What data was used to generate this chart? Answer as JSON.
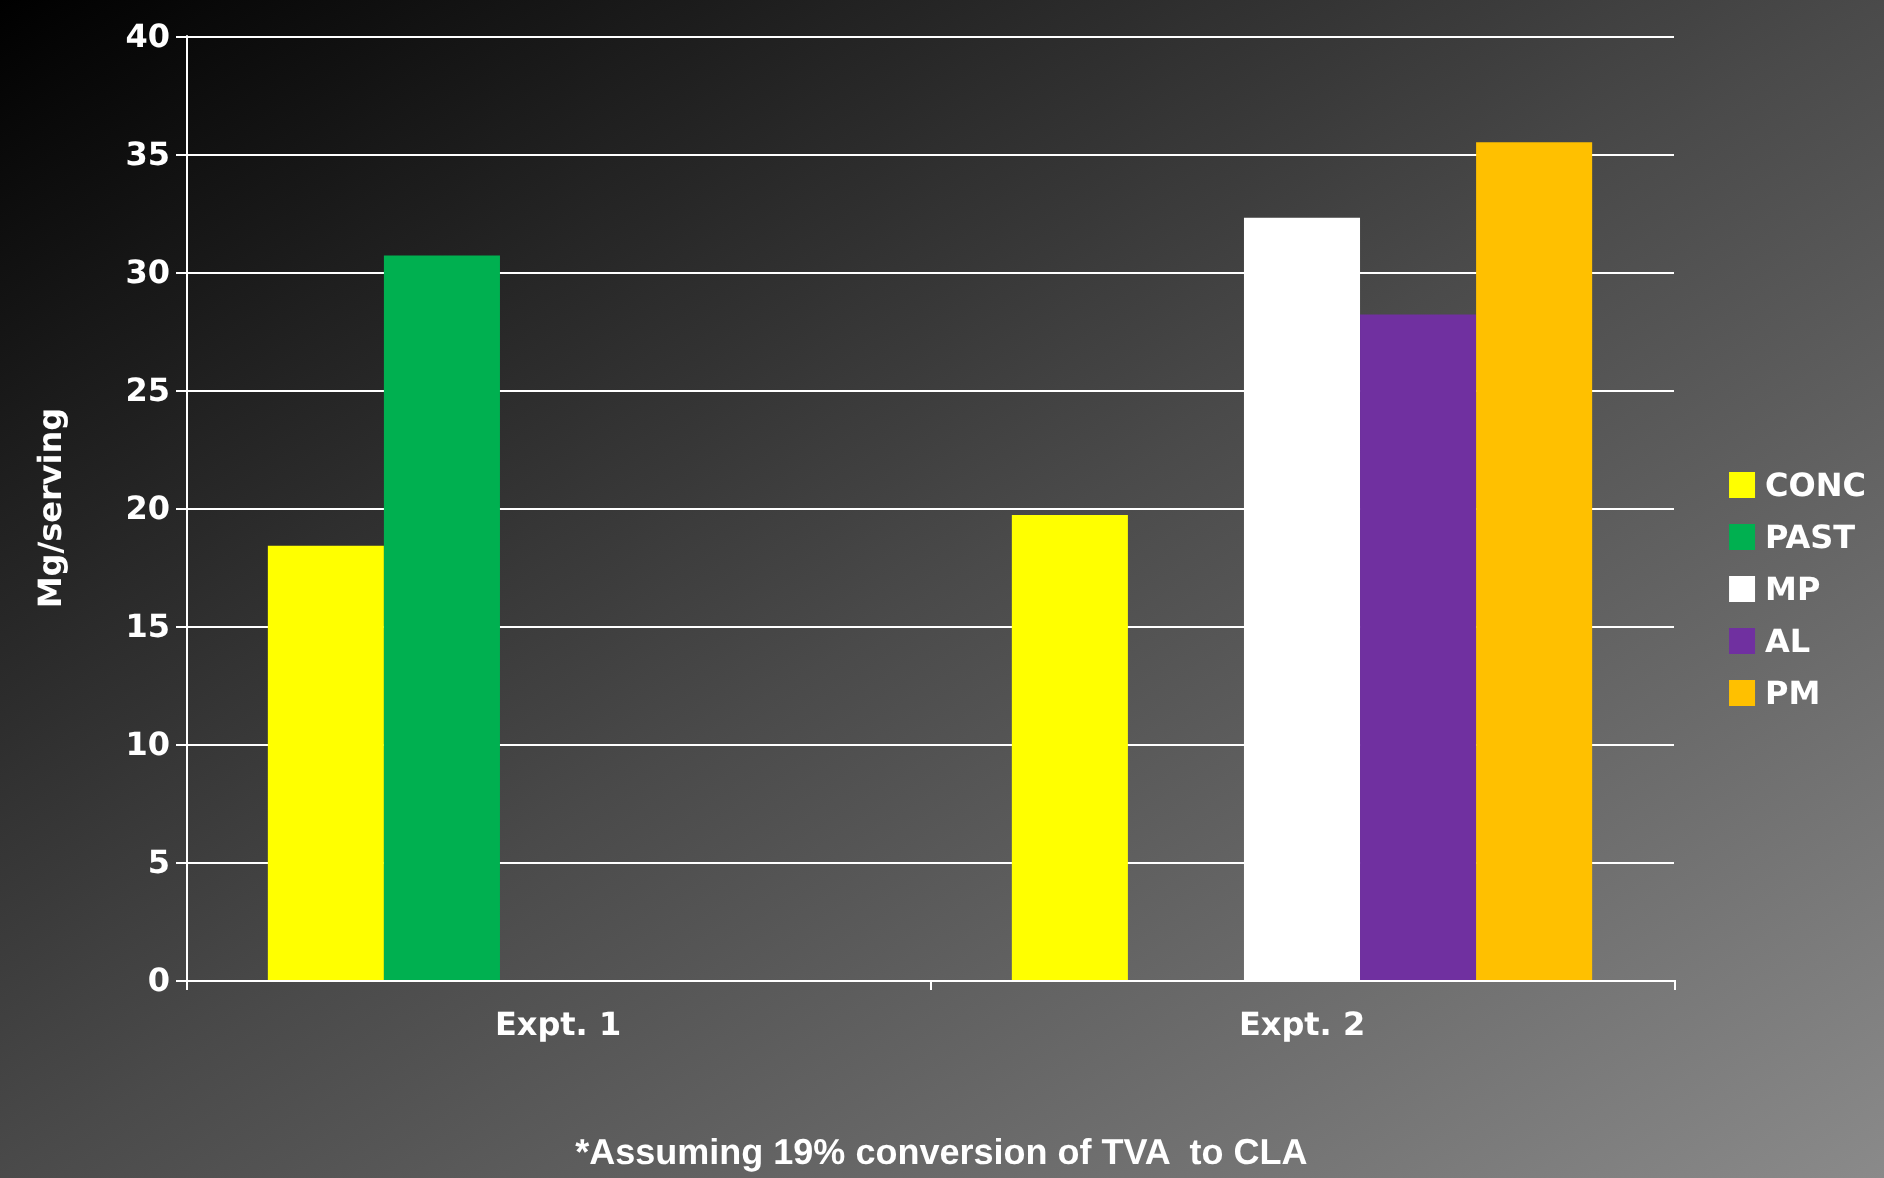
{
  "chart_data": {
    "type": "bar",
    "ylabel": "Mg/serving",
    "categories": [
      "Expt. 1",
      "Expt. 2"
    ],
    "series": [
      {
        "name": "CONC",
        "color": "#ffff00",
        "values": [
          18.4,
          19.7
        ]
      },
      {
        "name": "PAST",
        "color": "#00b050",
        "values": [
          30.7,
          null
        ]
      },
      {
        "name": "MP",
        "color": "#ffffff",
        "values": [
          null,
          32.3
        ]
      },
      {
        "name": "AL",
        "color": "#7030a0",
        "values": [
          null,
          28.2
        ]
      },
      {
        "name": "PM",
        "color": "#ffc000",
        "values": [
          null,
          35.5
        ]
      }
    ],
    "ylim": [
      0,
      40
    ],
    "yticks": [
      0,
      5,
      10,
      15,
      20,
      25,
      30,
      35,
      40
    ],
    "grid": "y",
    "legend": "right",
    "annotations": [
      "*Assuming 19% conversion of TVA  to CLA"
    ]
  }
}
